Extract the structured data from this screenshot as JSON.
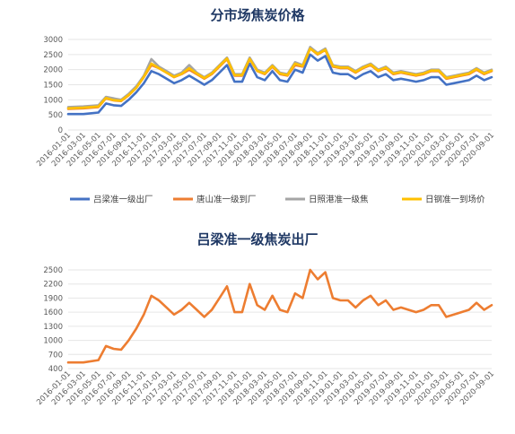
{
  "chart_data": [
    {
      "type": "line",
      "title": "分市场焦炭价格",
      "ylim": [
        0,
        3000
      ],
      "yticks": [
        0,
        500,
        1000,
        1500,
        2000,
        2500,
        3000
      ],
      "ytick_labels": [
        "0",
        "500",
        "1000",
        "1500",
        "2000",
        "2500",
        "3000"
      ],
      "xtick_labels": [
        "2016-01-01",
        "2016-03-01",
        "2016-05-01",
        "2016-07-01",
        "2016-09-01",
        "2016-11-01",
        "2017-01-01",
        "2017-03-01",
        "2017-05-01",
        "2017-07-01",
        "2017-09-01",
        "2017-11-01",
        "2018-01-01",
        "2018-03-01",
        "2018-05-01",
        "2018-07-01",
        "2018-09-01",
        "2018-11-01",
        "2019-01-01",
        "2019-03-01",
        "2019-05-01",
        "2019-07-01",
        "2019-09-01",
        "2019-11-01",
        "2020-01-01",
        "2020-03-01",
        "2020-05-01",
        "2020-07-01",
        "2020-09-01"
      ],
      "grid": true,
      "legend_position": "bottom",
      "x": [
        "2016-01",
        "2016-03",
        "2016-05",
        "2016-06",
        "2016-07",
        "2016-08",
        "2016-09",
        "2016-10",
        "2016-11",
        "2016-12",
        "2017-01",
        "2017-02",
        "2017-03",
        "2017-04",
        "2017-05",
        "2017-06",
        "2017-07",
        "2017-08",
        "2017-09",
        "2017-10",
        "2017-11",
        "2017-12",
        "2018-01",
        "2018-02",
        "2018-03",
        "2018-04",
        "2018-05",
        "2018-06",
        "2018-07",
        "2018-08",
        "2018-09",
        "2018-10",
        "2018-11",
        "2018-12",
        "2019-01",
        "2019-02",
        "2019-03",
        "2019-04",
        "2019-05",
        "2019-06",
        "2019-07",
        "2019-08",
        "2019-09",
        "2019-10",
        "2019-11",
        "2019-12",
        "2020-01",
        "2020-02",
        "2020-03",
        "2020-04",
        "2020-05",
        "2020-06",
        "2020-07",
        "2020-08",
        "2020-09"
      ],
      "series": [
        {
          "name": "吕梁准一级出厂",
          "color": "#4472c4",
          "values": [
            530,
            530,
            580,
            880,
            820,
            800,
            1000,
            1250,
            1550,
            1950,
            1850,
            1700,
            1550,
            1650,
            1800,
            1650,
            1500,
            1650,
            1900,
            2150,
            1600,
            1600,
            2200,
            1750,
            1650,
            1950,
            1650,
            1600,
            2000,
            1900,
            2500,
            2300,
            2450,
            1900,
            1850,
            1850,
            1700,
            1850,
            1950,
            1750,
            1850,
            1650,
            1700,
            1650,
            1600,
            1650,
            1750,
            1750,
            1500,
            1550,
            1600,
            1650,
            1800,
            1650,
            1750
          ]
        },
        {
          "name": "唐山准一级到厂",
          "color": "#ed7d31",
          "values": [
            700,
            720,
            760,
            1050,
            980,
            960,
            1150,
            1400,
            1750,
            2150,
            2050,
            1900,
            1750,
            1850,
            2000,
            1850,
            1700,
            1850,
            2100,
            2350,
            1800,
            1800,
            2350,
            1950,
            1850,
            2100,
            1850,
            1800,
            2150,
            2100,
            2700,
            2500,
            2650,
            2100,
            2050,
            2050,
            1900,
            2050,
            2150,
            1950,
            2050,
            1850,
            1900,
            1850,
            1800,
            1850,
            1950,
            1950,
            1700,
            1750,
            1800,
            1850,
            2000,
            1850,
            1950
          ]
        },
        {
          "name": "日照港准一级焦",
          "color": "#a5a5a5",
          "values": [
            760,
            780,
            820,
            1100,
            1050,
            1000,
            1200,
            1450,
            1800,
            2350,
            2100,
            1950,
            1800,
            1900,
            2150,
            1900,
            1750,
            1900,
            2150,
            2400,
            1850,
            1850,
            2400,
            2000,
            1900,
            2150,
            1900,
            1850,
            2250,
            2150,
            2750,
            2550,
            2700,
            2150,
            2100,
            2100,
            1950,
            2100,
            2200,
            2000,
            2100,
            1900,
            1950,
            1900,
            1850,
            1900,
            2000,
            2000,
            1750,
            1800,
            1850,
            1900,
            2050,
            1900,
            2000
          ]
        },
        {
          "name": "日钢准一到场价",
          "color": "#ffc000",
          "values": [
            720,
            740,
            780,
            1060,
            990,
            970,
            1160,
            1400,
            1760,
            2200,
            2050,
            1900,
            1760,
            1860,
            2050,
            1870,
            1720,
            1870,
            2120,
            2370,
            1820,
            1820,
            2360,
            1960,
            1870,
            2120,
            1870,
            1820,
            2200,
            2120,
            2700,
            2520,
            2660,
            2120,
            2070,
            2070,
            1920,
            2070,
            2170,
            1970,
            2070,
            1870,
            1920,
            1870,
            1820,
            1870,
            1970,
            1970,
            1720,
            1770,
            1820,
            1870,
            2020,
            1870,
            1970
          ]
        }
      ]
    },
    {
      "type": "line",
      "title": "吕梁准一级焦炭出厂",
      "ylim": [
        400,
        2500
      ],
      "yticks": [
        400,
        700,
        1000,
        1300,
        1600,
        1900,
        2200,
        2500
      ],
      "ytick_labels": [
        "400",
        "700",
        "1000",
        "1300",
        "1600",
        "1900",
        "2200",
        "2500"
      ],
      "xtick_labels": [
        "2016-01-01",
        "2016-03-01",
        "2016-05-01",
        "2016-07-01",
        "2016-09-01",
        "2016-11-01",
        "2017-01-01",
        "2017-03-01",
        "2017-05-01",
        "2017-07-01",
        "2017-09-01",
        "2017-11-01",
        "2018-01-01",
        "2018-03-01",
        "2018-05-01",
        "2018-07-01",
        "2018-09-01",
        "2018-11-01",
        "2019-01-01",
        "2019-03-01",
        "2019-05-01",
        "2019-07-01",
        "2019-09-01",
        "2019-11-01",
        "2020-01-01",
        "2020-03-01",
        "2020-05-01",
        "2020-07-01",
        "2020-09-01"
      ],
      "grid": true,
      "legend_position": "none",
      "x": [
        "2016-01",
        "2016-03",
        "2016-05",
        "2016-06",
        "2016-07",
        "2016-08",
        "2016-09",
        "2016-10",
        "2016-11",
        "2016-12",
        "2017-01",
        "2017-02",
        "2017-03",
        "2017-04",
        "2017-05",
        "2017-06",
        "2017-07",
        "2017-08",
        "2017-09",
        "2017-10",
        "2017-11",
        "2017-12",
        "2018-01",
        "2018-02",
        "2018-03",
        "2018-04",
        "2018-05",
        "2018-06",
        "2018-07",
        "2018-08",
        "2018-09",
        "2018-10",
        "2018-11",
        "2018-12",
        "2019-01",
        "2019-02",
        "2019-03",
        "2019-04",
        "2019-05",
        "2019-06",
        "2019-07",
        "2019-08",
        "2019-09",
        "2019-10",
        "2019-11",
        "2019-12",
        "2020-01",
        "2020-02",
        "2020-03",
        "2020-04",
        "2020-05",
        "2020-06",
        "2020-07",
        "2020-08",
        "2020-09"
      ],
      "series": [
        {
          "color": "#ed7d31",
          "values": [
            530,
            530,
            580,
            880,
            820,
            800,
            1000,
            1250,
            1550,
            1950,
            1850,
            1700,
            1550,
            1650,
            1800,
            1650,
            1500,
            1650,
            1900,
            2150,
            1600,
            1600,
            2200,
            1750,
            1650,
            1950,
            1650,
            1600,
            2000,
            1900,
            2500,
            2300,
            2450,
            1900,
            1850,
            1850,
            1700,
            1850,
            1950,
            1750,
            1850,
            1650,
            1700,
            1650,
            1600,
            1650,
            1750,
            1750,
            1500,
            1550,
            1600,
            1650,
            1800,
            1650,
            1750
          ]
        }
      ]
    }
  ]
}
